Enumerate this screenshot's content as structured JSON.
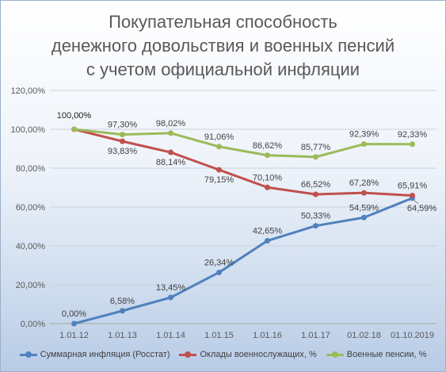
{
  "chart_data": {
    "type": "line",
    "title_lines": [
      "Покупательная способность",
      "денежного довольствия и военных пенсий",
      "с учетом официальной инфляции"
    ],
    "categories": [
      "1.01.12",
      "1.01.13",
      "1.01.14",
      "1.01.15",
      "1.01.16",
      "1.01.17",
      "01.02.18",
      "01.10.2019"
    ],
    "ylim": [
      0,
      120
    ],
    "ytick_values": [
      0,
      20,
      40,
      60,
      80,
      100,
      120
    ],
    "ytick_labels": [
      "0,00%",
      "20,00%",
      "40,00%",
      "60,00%",
      "80,00%",
      "100,00%",
      "120,00%"
    ],
    "grid": true,
    "legend_position": "bottom",
    "series": [
      {
        "name": "Суммарная инфляция (Росстат)",
        "color": "#4f81bd",
        "values": [
          0,
          6.58,
          13.45,
          26.34,
          42.65,
          50.33,
          54.59,
          64.59
        ],
        "labels": [
          "0,00%",
          "6,58%",
          "13,45%",
          "26,34%",
          "42,65%",
          "50,33%",
          "54,59%",
          "64,59%"
        ]
      },
      {
        "name": "Оклады военнослужащих, %",
        "color": "#c0504d",
        "values": [
          100,
          93.83,
          88.14,
          79.15,
          70.1,
          66.52,
          67.28,
          65.91
        ],
        "labels": [
          "100,00%",
          "93,83%",
          "88,14%",
          "79,15%",
          "70,10%",
          "66,52%",
          "67,28%",
          "65,91%"
        ]
      },
      {
        "name": "Военные пенсии, %",
        "color": "#9bbb59",
        "values": [
          100,
          97.3,
          98.02,
          91.06,
          86.62,
          85.77,
          92.39,
          92.33
        ],
        "labels": [
          "100,00%",
          "97,30%",
          "98,02%",
          "91,06%",
          "86,62%",
          "85,77%",
          "92,39%",
          "92,33%"
        ]
      }
    ]
  }
}
